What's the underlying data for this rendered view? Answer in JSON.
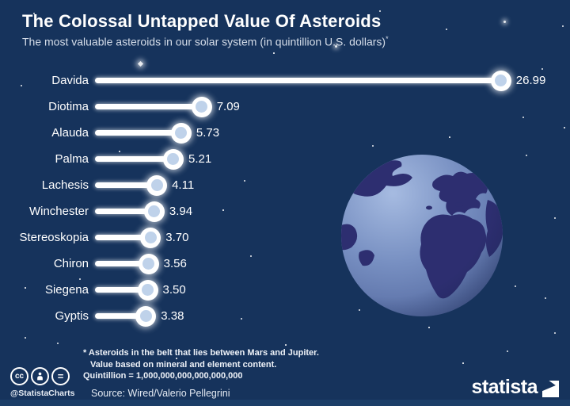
{
  "header": {
    "title": "The Colossal Untapped Value Of Asteroids",
    "subtitle": "The most valuable asteroids in our solar system (in quintillion U.S. dollars)",
    "subtitle_asterisk": "*"
  },
  "chart_data": {
    "type": "bar",
    "style": "lollipop",
    "orientation": "horizontal",
    "title": "The Colossal Untapped Value Of Asteroids",
    "subtitle": "The most valuable asteroids in our solar system (in quintillion U.S. dollars)*",
    "unit": "quintillion U.S. dollars",
    "categories": [
      "Davida",
      "Diotima",
      "Alauda",
      "Palma",
      "Lachesis",
      "Winchester",
      "Stereoskopia",
      "Chiron",
      "Siegena",
      "Gyptis"
    ],
    "values": [
      26.99,
      7.09,
      5.73,
      5.21,
      4.11,
      3.94,
      3.7,
      3.56,
      3.5,
      3.38
    ],
    "value_labels": [
      "26.99",
      "7.09",
      "5.73",
      "5.21",
      "4.11",
      "3.94",
      "3.70",
      "3.56",
      "3.50",
      "3.38"
    ],
    "xlim": [
      0,
      27.5
    ],
    "grid": false,
    "legend": false
  },
  "footnote": {
    "line1": "* Asteroids in the belt that lies between Mars and Jupiter.",
    "line2": "Value based on mineral and element content.",
    "line3": "Quintillion = 1,000,000,000,000,000,000"
  },
  "footer": {
    "license_icons": [
      "cc-icon",
      "attribution-person-icon",
      "no-derivatives-icon"
    ],
    "cc_icon_label": "cc",
    "nd_icon_label": "=",
    "handle": "@StatistaCharts",
    "source": "Source: Wired/Valerio Pellegrini",
    "brand": "statista"
  },
  "colors": {
    "background": "#16335c",
    "footer_strip": "#1c3e68",
    "bar": "#ffffff",
    "knob_inner": "#bfd2ea",
    "text": "#ffffff",
    "subtitle_text": "#d5dde9",
    "continent": "#2d2e70",
    "ocean_light": "#a6bbe1",
    "ocean_mid": "#7890c2",
    "ocean_dark": "#4a5e97"
  }
}
